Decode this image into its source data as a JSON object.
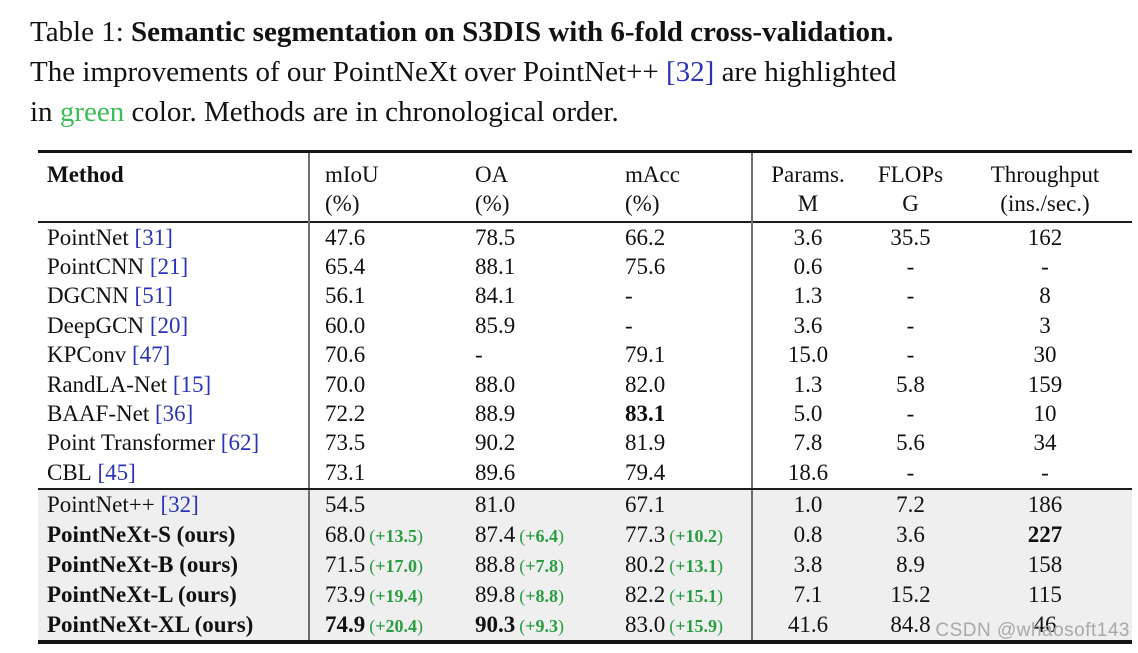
{
  "colors": {
    "cite_blue": "#2b34b8",
    "green_caption": "#3cbd58",
    "green_delta": "#2a9d42",
    "section_bg": "#efefef"
  },
  "caption": {
    "label": "Table 1: ",
    "title_bold": "Semantic segmentation on S3DIS with 6-fold cross-validation.",
    "line2_before": "The improvements of our PointNeXt over PointNet++ ",
    "line2_cite": "[32]",
    "line2_after": " are highlighted",
    "line3_before": "in ",
    "green_word": "green",
    "line3_after": " color. Methods are in chronological order."
  },
  "table": {
    "columns": [
      {
        "line1": "Method",
        "line2": ""
      },
      {
        "line1": "mIoU",
        "line2": "(%)"
      },
      {
        "line1": "OA",
        "line2": "(%)"
      },
      {
        "line1": "mAcc",
        "line2": "(%)"
      },
      {
        "line1": "Params.",
        "line2": "M"
      },
      {
        "line1": "FLOPs",
        "line2": "G"
      },
      {
        "line1": "Throughput",
        "line2": "(ins./sec.)"
      }
    ],
    "rows_top": [
      {
        "method": {
          "name": "PointNet",
          "cite": "[31]",
          "bold": false
        },
        "cells": [
          {
            "v": "47.6"
          },
          {
            "v": "78.5"
          },
          {
            "v": "66.2"
          },
          {
            "v": "3.6"
          },
          {
            "v": "35.5"
          },
          {
            "v": "162"
          }
        ]
      },
      {
        "method": {
          "name": "PointCNN",
          "cite": "[21]",
          "bold": false
        },
        "cells": [
          {
            "v": "65.4"
          },
          {
            "v": "88.1"
          },
          {
            "v": "75.6"
          },
          {
            "v": "0.6"
          },
          {
            "v": "-"
          },
          {
            "v": "-"
          }
        ]
      },
      {
        "method": {
          "name": "DGCNN",
          "cite": "[51]",
          "bold": false
        },
        "cells": [
          {
            "v": "56.1"
          },
          {
            "v": "84.1"
          },
          {
            "v": "-"
          },
          {
            "v": "1.3"
          },
          {
            "v": "-"
          },
          {
            "v": "8"
          }
        ]
      },
      {
        "method": {
          "name": "DeepGCN",
          "cite": "[20]",
          "bold": false
        },
        "cells": [
          {
            "v": "60.0"
          },
          {
            "v": "85.9"
          },
          {
            "v": "-"
          },
          {
            "v": "3.6"
          },
          {
            "v": "-"
          },
          {
            "v": "3"
          }
        ]
      },
      {
        "method": {
          "name": "KPConv",
          "cite": "[47]",
          "bold": false
        },
        "cells": [
          {
            "v": "70.6"
          },
          {
            "v": "-"
          },
          {
            "v": "79.1"
          },
          {
            "v": "15.0"
          },
          {
            "v": "-"
          },
          {
            "v": "30"
          }
        ]
      },
      {
        "method": {
          "name": "RandLA-Net",
          "cite": "[15]",
          "bold": false
        },
        "cells": [
          {
            "v": "70.0"
          },
          {
            "v": "88.0"
          },
          {
            "v": "82.0"
          },
          {
            "v": "1.3"
          },
          {
            "v": "5.8"
          },
          {
            "v": "159"
          }
        ]
      },
      {
        "method": {
          "name": "BAAF-Net",
          "cite": "[36]",
          "bold": false
        },
        "cells": [
          {
            "v": "72.2"
          },
          {
            "v": "88.9"
          },
          {
            "v": "83.1",
            "bold": true
          },
          {
            "v": "5.0"
          },
          {
            "v": "-"
          },
          {
            "v": "10"
          }
        ]
      },
      {
        "method": {
          "name": "Point Transformer",
          "cite": "[62]",
          "bold": false
        },
        "cells": [
          {
            "v": "73.5"
          },
          {
            "v": "90.2"
          },
          {
            "v": "81.9"
          },
          {
            "v": "7.8"
          },
          {
            "v": "5.6"
          },
          {
            "v": "34"
          }
        ]
      },
      {
        "method": {
          "name": "CBL",
          "cite": "[45]",
          "bold": false
        },
        "cells": [
          {
            "v": "73.1"
          },
          {
            "v": "89.6"
          },
          {
            "v": "79.4"
          },
          {
            "v": "18.6"
          },
          {
            "v": "-"
          },
          {
            "v": "-"
          }
        ]
      }
    ],
    "rows_bottom": [
      {
        "method": {
          "name": "PointNet++",
          "cite": "[32]",
          "bold": false
        },
        "cells": [
          {
            "v": "54.5"
          },
          {
            "v": "81.0"
          },
          {
            "v": "67.1"
          },
          {
            "v": "1.0"
          },
          {
            "v": "7.2"
          },
          {
            "v": "186"
          }
        ]
      },
      {
        "method": {
          "name": "PointNeXt-S (ours)",
          "cite": null,
          "bold": true
        },
        "cells": [
          {
            "v": "68.0",
            "delta": "+13.5"
          },
          {
            "v": "87.4",
            "delta": "+6.4"
          },
          {
            "v": "77.3",
            "delta": "+10.2"
          },
          {
            "v": "0.8"
          },
          {
            "v": "3.6"
          },
          {
            "v": "227",
            "bold": true
          }
        ]
      },
      {
        "method": {
          "name": "PointNeXt-B (ours)",
          "cite": null,
          "bold": true
        },
        "cells": [
          {
            "v": "71.5",
            "delta": "+17.0"
          },
          {
            "v": "88.8",
            "delta": "+7.8"
          },
          {
            "v": "80.2",
            "delta": "+13.1"
          },
          {
            "v": "3.8"
          },
          {
            "v": "8.9"
          },
          {
            "v": "158"
          }
        ]
      },
      {
        "method": {
          "name": "PointNeXt-L (ours)",
          "cite": null,
          "bold": true
        },
        "cells": [
          {
            "v": "73.9",
            "delta": "+19.4"
          },
          {
            "v": "89.8",
            "delta": "+8.8"
          },
          {
            "v": "82.2",
            "delta": "+15.1"
          },
          {
            "v": "7.1"
          },
          {
            "v": "15.2"
          },
          {
            "v": "115"
          }
        ]
      },
      {
        "method": {
          "name": "PointNeXt-XL (ours)",
          "cite": null,
          "bold": true
        },
        "cells": [
          {
            "v": "74.9",
            "bold": true,
            "delta": "+20.4"
          },
          {
            "v": "90.3",
            "bold": true,
            "delta": "+9.3"
          },
          {
            "v": "83.0",
            "delta": "+15.9"
          },
          {
            "v": "41.6"
          },
          {
            "v": "84.8"
          },
          {
            "v": "46"
          }
        ]
      }
    ]
  },
  "watermark": "CSDN @whaosoft143"
}
